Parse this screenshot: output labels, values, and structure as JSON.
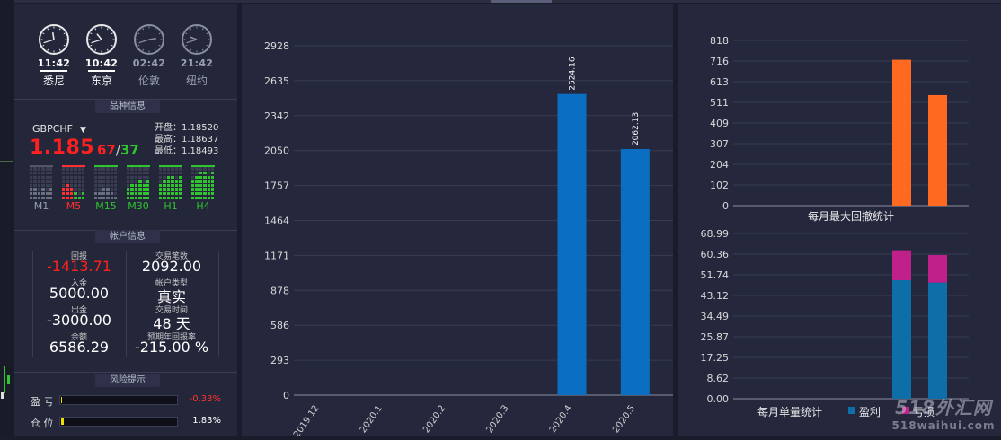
{
  "clocks": [
    {
      "time": "11:42",
      "city": "悉尼",
      "active": true,
      "hour": 11,
      "minute": 42
    },
    {
      "time": "10:42",
      "city": "东京",
      "active": true,
      "hour": 10,
      "minute": 42
    },
    {
      "time": "02:42",
      "city": "伦敦",
      "active": false,
      "hour": 2,
      "minute": 42
    },
    {
      "time": "21:42",
      "city": "纽约",
      "active": false,
      "hour": 21,
      "minute": 42
    }
  ],
  "symbol_section": {
    "title": "品种信息",
    "symbol": "GBPCHF",
    "price_main": "1.185",
    "price_bid_tail": "67",
    "price_sep": "/",
    "price_ask_tail": "37",
    "open_label": "开盘：1.18520",
    "high_label": "最高：1.18637",
    "low_label": "最低：1.18493",
    "timeframes": [
      {
        "label": "M1",
        "color": "#9aa0b0"
      },
      {
        "label": "M5",
        "color": "#ff3030"
      },
      {
        "label": "M15",
        "color": "#2ec52e"
      },
      {
        "label": "M30",
        "color": "#2ec52e"
      },
      {
        "label": "H1",
        "color": "#2ec52e"
      },
      {
        "label": "H4",
        "color": "#2ec52e"
      }
    ]
  },
  "account_section": {
    "title": "帐户信息",
    "items": [
      {
        "label": "回报",
        "value": "-1413.71",
        "color": "#ff2020"
      },
      {
        "label": "交易笔数",
        "value": "2092.00",
        "color": "#ffffff"
      },
      {
        "label": "入金",
        "value": "5000.00",
        "color": "#ffffff"
      },
      {
        "label": "帐户类型",
        "value": "真实",
        "color": "#ffffff"
      },
      {
        "label": "出金",
        "value": "-3000.00",
        "color": "#ffffff"
      },
      {
        "label": "交易时间",
        "value": "48 天",
        "color": "#ffffff"
      },
      {
        "label": "余额",
        "value": "6586.29",
        "color": "#ffffff"
      },
      {
        "label": "预期年回报率",
        "value": "-215.00 %",
        "color": "#ffffff"
      }
    ]
  },
  "risk_section": {
    "title": "风险提示",
    "rows": [
      {
        "label": "盈 亏",
        "value": "-0.33%",
        "value_color": "#ff3030",
        "fill_percent": 1
      },
      {
        "label": "仓 位",
        "value": "1.83%",
        "value_color": "#ffffff",
        "fill_percent": 2
      }
    ]
  },
  "chart_data": [
    {
      "type": "bar",
      "categories": [
        "2019.12",
        "2020.1",
        "2020.2",
        "2020.3",
        "2020.4",
        "2020.5"
      ],
      "values": [
        0,
        0,
        0,
        0,
        2524.16,
        2062.13
      ],
      "value_labels": [
        "",
        "",
        "",
        "",
        "2524.16",
        "2062.13"
      ],
      "yticks": [
        "0",
        "293",
        "586",
        "878",
        "1171",
        "1464",
        "1757",
        "2050",
        "2342",
        "2635",
        "2928"
      ],
      "ylim": [
        0,
        2928
      ],
      "color": "#0a6fc2",
      "grid": true
    },
    {
      "type": "bar",
      "categories": [
        "2020.4",
        "2020.5"
      ],
      "values": [
        722,
        547
      ],
      "yticks": [
        "0",
        "102",
        "204",
        "307",
        "409",
        "511",
        "613",
        "716",
        "818"
      ],
      "ylim": [
        0,
        818
      ],
      "xlabel": "每月最大回撤统计",
      "color": "#ff6a20",
      "grid": true
    },
    {
      "type": "bar",
      "stacked": true,
      "categories": [
        "2020.4",
        "2020.5"
      ],
      "series": [
        {
          "name": "盈利",
          "values": [
            49.5,
            48.5
          ],
          "color": "#0d6ea8"
        },
        {
          "name": "亏损",
          "values": [
            12.5,
            11.5
          ],
          "color": "#c0208a"
        }
      ],
      "yticks": [
        "0.00",
        "8.62",
        "17.25",
        "25.87",
        "34.49",
        "43.12",
        "51.74",
        "60.36",
        "68.99"
      ],
      "ylim": [
        0,
        68.99
      ],
      "xlabel": "每月单量统计",
      "grid": true
    }
  ],
  "watermark": {
    "line1": "518外汇网",
    "line2": "518waihui.com"
  }
}
